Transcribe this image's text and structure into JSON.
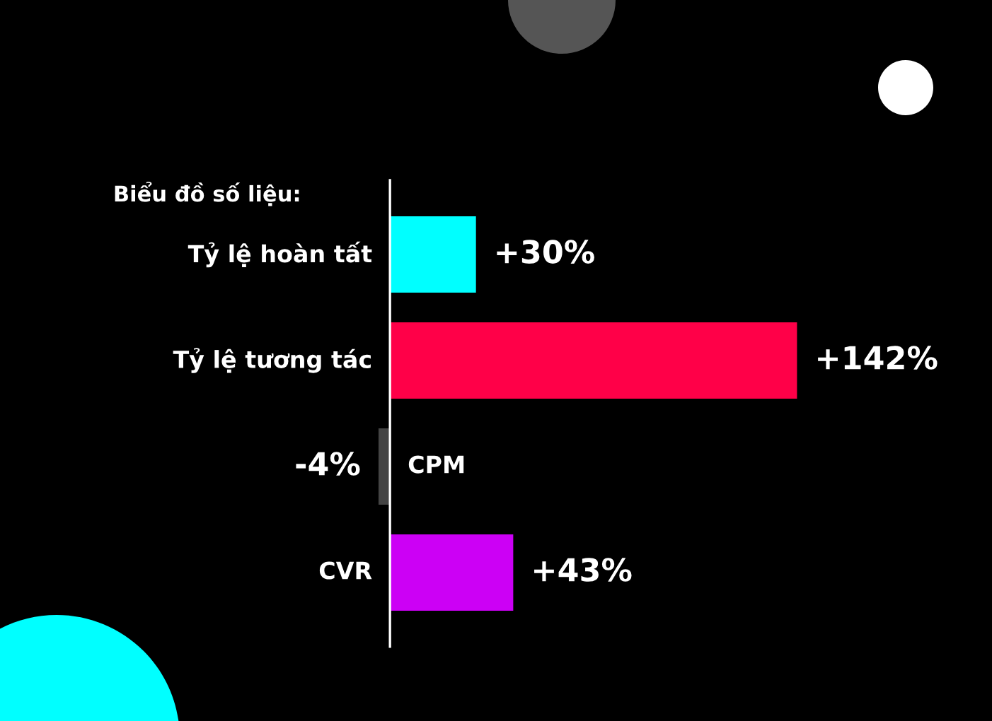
{
  "chart_data": {
    "type": "bar",
    "orientation": "horizontal",
    "title": "Biểu đồ số liệu:",
    "categories": [
      "Tỷ lệ hoàn tất",
      "Tỷ lệ tương tác",
      "CPM",
      "CVR"
    ],
    "values": [
      30,
      142,
      -4,
      43
    ],
    "colors": [
      "#00ffff",
      "#ff0048",
      "#444444",
      "#cc00f5"
    ],
    "value_labels": [
      "+30%",
      "+142%",
      "-4%",
      "+43%"
    ]
  }
}
